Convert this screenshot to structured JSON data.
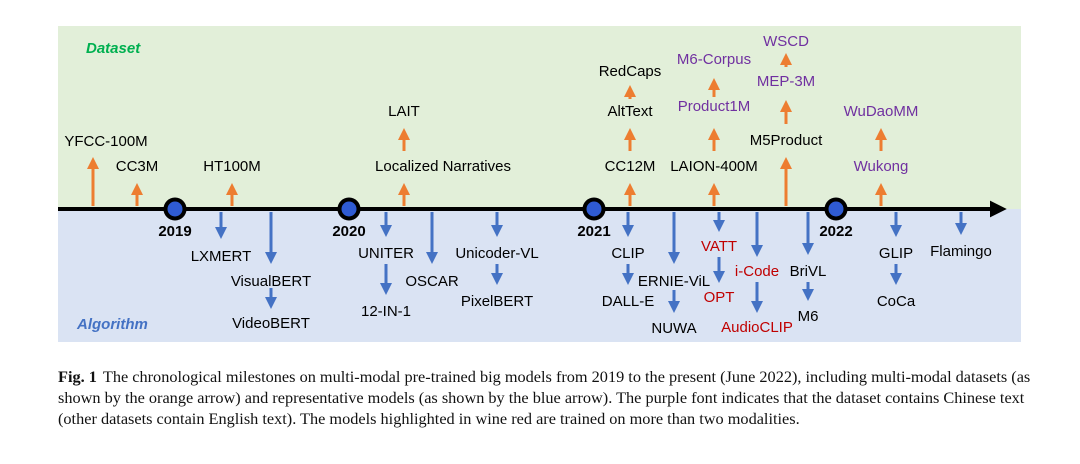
{
  "sections": {
    "dataset": "Dataset",
    "algorithm": "Algorithm"
  },
  "years": [
    "2019",
    "2020",
    "2021",
    "2022"
  ],
  "datasets": [
    {
      "label": "YFCC-100M",
      "color": "#000000"
    },
    {
      "label": "CC3M",
      "color": "#000000"
    },
    {
      "label": "HT100M",
      "color": "#000000"
    },
    {
      "label": "LAIT",
      "color": "#000000"
    },
    {
      "label": "Localized Narratives",
      "color": "#000000"
    },
    {
      "label": "RedCaps",
      "color": "#000000"
    },
    {
      "label": "AltText",
      "color": "#000000"
    },
    {
      "label": "CC12M",
      "color": "#000000"
    },
    {
      "label": "M6-Corpus",
      "color": "#7030a0"
    },
    {
      "label": "Product1M",
      "color": "#7030a0"
    },
    {
      "label": "LAION-400M",
      "color": "#000000"
    },
    {
      "label": "WSCD",
      "color": "#7030a0"
    },
    {
      "label": "MEP-3M",
      "color": "#7030a0"
    },
    {
      "label": "M5Product",
      "color": "#000000"
    },
    {
      "label": "WuDaoMM",
      "color": "#7030a0"
    },
    {
      "label": "Wukong",
      "color": "#7030a0"
    }
  ],
  "models": [
    {
      "label": "LXMERT",
      "color": "#000000"
    },
    {
      "label": "VisualBERT",
      "color": "#000000"
    },
    {
      "label": "VideoBERT",
      "color": "#000000"
    },
    {
      "label": "UNITER",
      "color": "#000000"
    },
    {
      "label": "12-IN-1",
      "color": "#000000"
    },
    {
      "label": "OSCAR",
      "color": "#000000"
    },
    {
      "label": "Unicoder-VL",
      "color": "#000000"
    },
    {
      "label": "PixelBERT",
      "color": "#000000"
    },
    {
      "label": "CLIP",
      "color": "#000000"
    },
    {
      "label": "DALL-E",
      "color": "#000000"
    },
    {
      "label": "ERNIE-ViL",
      "color": "#000000"
    },
    {
      "label": "NUWA",
      "color": "#000000"
    },
    {
      "label": "VATT",
      "color": "#c00000"
    },
    {
      "label": "OPT",
      "color": "#c00000"
    },
    {
      "label": "i-Code",
      "color": "#c00000"
    },
    {
      "label": "AudioCLIP",
      "color": "#c00000"
    },
    {
      "label": "BriVL",
      "color": "#000000"
    },
    {
      "label": "M6",
      "color": "#000000"
    },
    {
      "label": "GLIP",
      "color": "#000000"
    },
    {
      "label": "CoCa",
      "color": "#000000"
    },
    {
      "label": "Flamingo",
      "color": "#000000"
    }
  ],
  "colors": {
    "dataset_bg": "#e2efd9",
    "algorithm_bg": "#dae3f3",
    "dataset_title": "#00b050",
    "algorithm_title": "#4472c4",
    "orange_arrow": "#ed7d31",
    "blue_arrow": "#4472c4",
    "year_dot": "#2f5bd3"
  },
  "caption": {
    "label": "Fig. 1",
    "text": "The chronological milestones on multi-modal pre-trained big models from 2019 to the present (June 2022), including multi-modal datasets (as shown by the orange arrow) and representative models (as shown by the blue arrow). The purple font indicates that the dataset contains Chinese text (other datasets contain English text). The models highlighted in wine red are trained on more than two modalities."
  }
}
